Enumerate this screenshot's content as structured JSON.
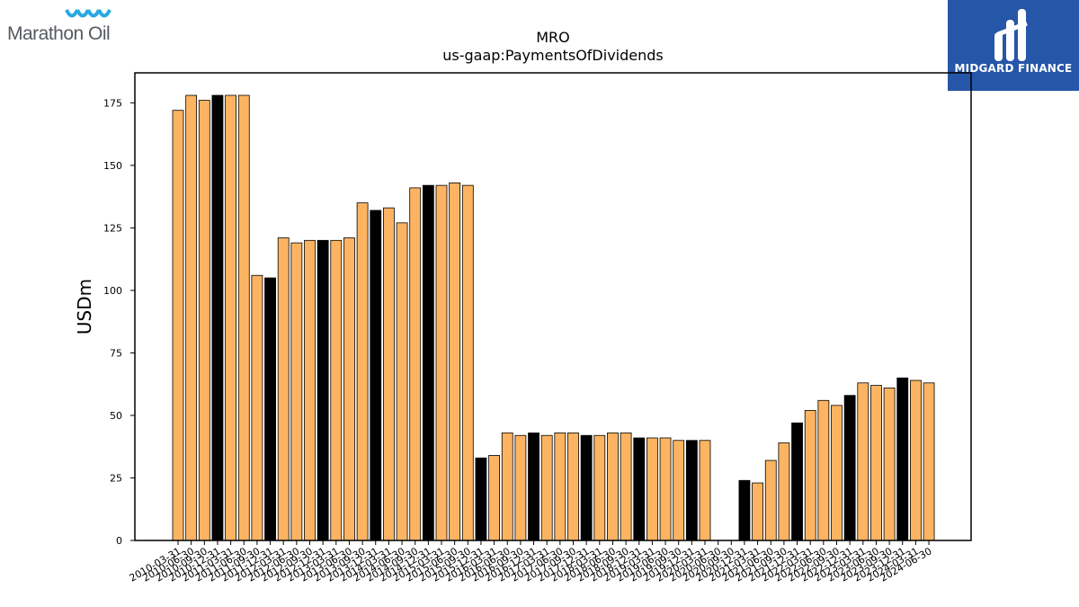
{
  "logos": {
    "left_brand": "Marathon Oil",
    "right_brand": "MIDGARD FINANCE"
  },
  "colors": {
    "bar_default": "#fdb462",
    "bar_highlight": "#000000",
    "right_logo_bg": "#2656a8",
    "left_logo_wave": "#29a9e1"
  },
  "chart_data": {
    "type": "bar",
    "title": "MRO",
    "subtitle": "us-gaap:PaymentsOfDividends",
    "ylabel": "USDm",
    "xlabel": "",
    "ylim": [
      0,
      187
    ],
    "yticks": [
      0,
      25,
      50,
      75,
      100,
      125,
      150,
      175
    ],
    "grid": false,
    "categories": [
      "2010-03-31",
      "2010-06-30",
      "2010-09-30",
      "2010-12-31",
      "2011-03-31",
      "2011-06-30",
      "2011-09-30",
      "2011-12-31",
      "2012-03-31",
      "2012-06-30",
      "2012-09-30",
      "2012-12-31",
      "2013-03-31",
      "2013-06-30",
      "2013-09-30",
      "2013-12-31",
      "2014-03-31",
      "2014-06-30",
      "2014-09-30",
      "2014-12-31",
      "2015-03-31",
      "2015-06-30",
      "2015-09-30",
      "2015-12-31",
      "2016-03-31",
      "2016-06-30",
      "2016-09-30",
      "2016-12-31",
      "2017-03-31",
      "2017-06-30",
      "2017-09-30",
      "2017-12-31",
      "2018-03-31",
      "2018-06-30",
      "2018-09-30",
      "2018-12-31",
      "2019-03-31",
      "2019-06-30",
      "2019-09-30",
      "2019-12-31",
      "2020-03-31",
      "2020-06-30",
      "2020-09-30",
      "2020-12-31",
      "2021-03-31",
      "2021-06-30",
      "2021-09-30",
      "2021-12-31",
      "2022-03-31",
      "2022-06-30",
      "2022-09-30",
      "2022-12-31",
      "2023-03-31",
      "2023-06-30",
      "2023-09-30",
      "2023-12-31",
      "2024-03-31",
      "2024-06-30"
    ],
    "values": [
      172,
      178,
      176,
      178,
      178,
      178,
      106,
      105,
      121,
      119,
      120,
      120,
      120,
      121,
      135,
      132,
      133,
      127,
      141,
      142,
      142,
      143,
      142,
      33,
      34,
      43,
      42,
      43,
      42,
      43,
      43,
      42,
      42,
      43,
      43,
      41,
      41,
      41,
      40,
      40,
      40,
      null,
      null,
      24,
      23,
      32,
      39,
      47,
      52,
      56,
      54,
      58,
      63,
      62,
      61,
      65,
      64,
      63
    ],
    "highlight_categories": [
      "2010-12-31",
      "2011-12-31",
      "2012-12-31",
      "2013-12-31",
      "2014-12-31",
      "2015-12-31",
      "2016-12-31",
      "2017-12-31",
      "2018-12-31",
      "2019-12-31",
      "2020-12-31",
      "2021-12-31",
      "2022-12-31",
      "2023-12-31"
    ]
  }
}
